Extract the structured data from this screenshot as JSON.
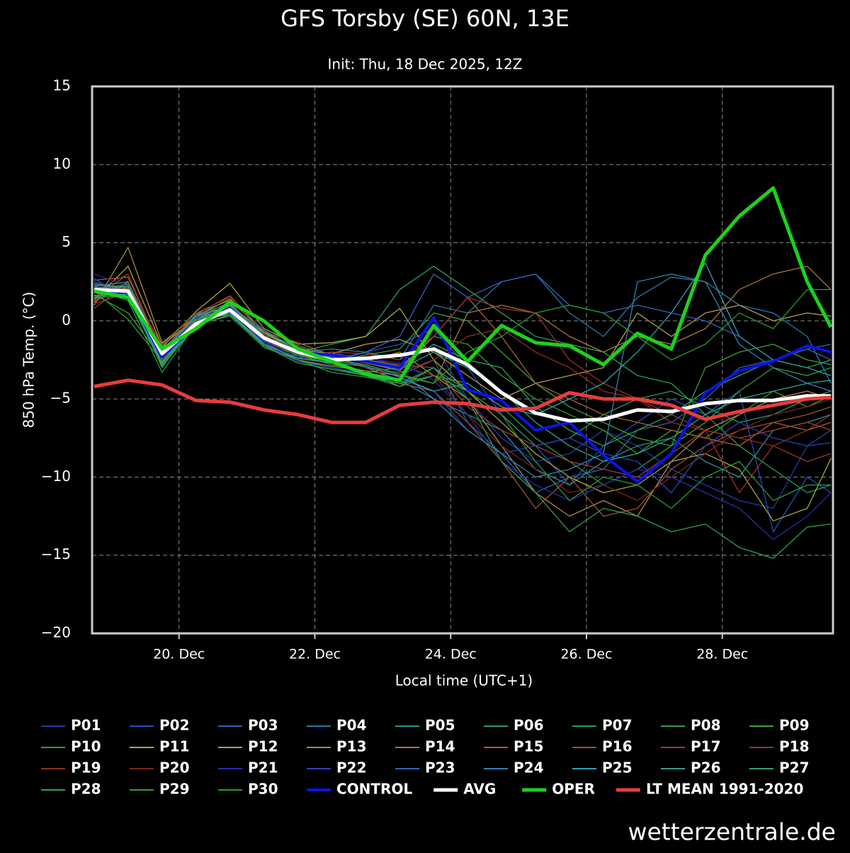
{
  "chart_data": {
    "type": "line",
    "title": "GFS Torsby (SE) 60N, 13E",
    "subtitle": "Init: Thu, 18 Dec 2025, 12Z",
    "xlabel": "Local time (UTC+1)",
    "ylabel": "850 hPa Temp. (°C)",
    "grid": true,
    "xlim": [
      18.72,
      29.63
    ],
    "ylim": [
      -20,
      15
    ],
    "xticks": [
      {
        "value": 20,
        "label": "20. Dec"
      },
      {
        "value": 22,
        "label": "22. Dec"
      },
      {
        "value": 24,
        "label": "24. Dec"
      },
      {
        "value": 26,
        "label": "26. Dec"
      },
      {
        "value": 28,
        "label": "28. Dec"
      }
    ],
    "yticks": [
      {
        "value": -20,
        "label": "−20"
      },
      {
        "value": -15,
        "label": "−15"
      },
      {
        "value": -10,
        "label": "−10"
      },
      {
        "value": -5,
        "label": "−5"
      },
      0,
      5,
      10,
      15
    ],
    "x": [
      18.75,
      19.25,
      19.75,
      20.25,
      20.75,
      21.25,
      21.75,
      22.25,
      22.75,
      23.25,
      23.75,
      24.25,
      24.75,
      25.25,
      25.75,
      26.25,
      26.75,
      27.25,
      27.75,
      28.25,
      28.75,
      29.25,
      29.6
    ],
    "series": [
      {
        "name": "P01",
        "color": "#1f3fa0",
        "linewidth": 1.3,
        "values": [
          2.5,
          2.0,
          -2.0,
          0.3,
          0.5,
          -1.0,
          -2.2,
          -2.0,
          -2.5,
          -3.0,
          -1.5,
          -5.0,
          -7.5,
          -9.0,
          -8.5,
          -7.0,
          -8.0,
          -9.5,
          -10.5,
          -11.5,
          -12.0,
          -8.0,
          -7.0
        ]
      },
      {
        "name": "P02",
        "color": "#2050c0",
        "linewidth": 1.3,
        "values": [
          1.8,
          2.2,
          -2.5,
          0.0,
          0.9,
          -1.5,
          -2.4,
          -2.6,
          -2.0,
          -1.5,
          -0.5,
          -3.0,
          -6.0,
          -8.0,
          -10.5,
          -8.0,
          -6.5,
          -5.0,
          -6.0,
          -4.5,
          -13.5,
          -10.0,
          -11.0
        ]
      },
      {
        "name": "P03",
        "color": "#2a64b0",
        "linewidth": 1.3,
        "values": [
          2.2,
          1.5,
          -1.8,
          -0.5,
          1.0,
          -0.8,
          -1.8,
          -2.4,
          -2.8,
          -3.5,
          -2.5,
          -6.5,
          -8.5,
          -11.0,
          -10.0,
          -9.5,
          -7.0,
          -6.5,
          -5.0,
          -3.0,
          -2.5,
          -1.8,
          -1.5
        ]
      },
      {
        "name": "P04",
        "color": "#2a78a8",
        "linewidth": 1.3,
        "values": [
          1.5,
          2.4,
          -2.2,
          0.2,
          0.6,
          -1.2,
          -2.0,
          -1.8,
          -2.0,
          -2.5,
          1.0,
          0.5,
          2.5,
          3.0,
          0.5,
          -1.0,
          1.5,
          2.8,
          2.5,
          1.0,
          0.5,
          -1.0,
          -4.0
        ]
      },
      {
        "name": "P05",
        "color": "#2a8ea0",
        "linewidth": 1.3,
        "values": [
          2.0,
          1.7,
          -2.6,
          -0.4,
          0.8,
          -1.1,
          -1.6,
          -2.2,
          -3.0,
          -3.8,
          -5.0,
          -6.0,
          -7.0,
          -9.5,
          -10.5,
          -9.0,
          -8.0,
          -7.5,
          -9.0,
          -10.0,
          -7.0,
          -6.5,
          -6.0
        ]
      },
      {
        "name": "P06",
        "color": "#2a9a70",
        "linewidth": 1.3,
        "values": [
          1.6,
          1.9,
          -3.0,
          0.1,
          0.4,
          -1.4,
          -2.5,
          -3.0,
          -3.5,
          -4.0,
          -3.0,
          -4.5,
          -6.0,
          -8.0,
          -7.5,
          -6.0,
          -5.0,
          -4.5,
          -5.5,
          -6.5,
          -6.0,
          -5.0,
          -4.5
        ]
      },
      {
        "name": "P07",
        "color": "#2aa058",
        "linewidth": 1.3,
        "values": [
          2.3,
          2.1,
          -1.5,
          0.5,
          1.3,
          -0.6,
          -2.0,
          -1.5,
          -1.0,
          2.0,
          3.5,
          2.0,
          0.5,
          -1.0,
          -1.5,
          -2.0,
          -3.5,
          -4.0,
          -6.0,
          -8.0,
          -9.5,
          -11.0,
          -10.5
        ]
      },
      {
        "name": "P08",
        "color": "#30a048",
        "linewidth": 1.3,
        "values": [
          1.9,
          1.6,
          -2.8,
          -0.2,
          0.7,
          -1.3,
          -2.2,
          -2.8,
          -3.2,
          -4.2,
          -3.5,
          -4.0,
          -5.5,
          -7.5,
          -9.0,
          -10.5,
          -9.5,
          -8.0,
          -6.5,
          -4.5,
          -3.0,
          -3.5,
          -3.0
        ]
      },
      {
        "name": "P09",
        "color": "#40a030",
        "linewidth": 1.3,
        "values": [
          2.1,
          2.3,
          -2.0,
          0.4,
          0.9,
          -0.9,
          -2.3,
          -2.5,
          -2.2,
          -1.8,
          0.5,
          0.0,
          -2.0,
          -4.0,
          -5.5,
          -6.5,
          -7.5,
          -8.0,
          -3.0,
          -2.0,
          -1.5,
          -2.5,
          -2.8
        ]
      },
      {
        "name": "P10",
        "color": "#3aa020",
        "linewidth": 1.3,
        "values": [
          1.7,
          0.5,
          -2.4,
          -0.1,
          1.1,
          -1.0,
          -2.1,
          -2.7,
          -3.3,
          -3.0,
          -1.0,
          -1.5,
          -3.5,
          -5.0,
          -6.0,
          -7.0,
          -8.5,
          -7.0,
          -7.5,
          -6.0,
          -4.5,
          -5.5,
          -4.8
        ]
      },
      {
        "name": "P11",
        "color": "#a8a840",
        "linewidth": 1.3,
        "values": [
          2.4,
          2.0,
          -1.7,
          0.6,
          2.4,
          -0.5,
          -1.5,
          -1.4,
          -1.0,
          0.8,
          -2.5,
          -4.5,
          -6.5,
          -8.5,
          -10.0,
          -11.0,
          -10.5,
          -9.0,
          -8.5,
          -9.5,
          -12.8,
          -12.0,
          -8.8
        ]
      },
      {
        "name": "P12",
        "color": "#b89a48",
        "linewidth": 1.3,
        "values": [
          1.3,
          3.5,
          -1.6,
          0.2,
          1.0,
          -0.7,
          -1.9,
          -2.1,
          -1.5,
          -1.2,
          -2.0,
          -3.5,
          -5.0,
          -4.0,
          -3.5,
          -3.0,
          0.5,
          -1.0,
          0.5,
          1.0,
          0.0,
          0.5,
          0.3
        ]
      },
      {
        "name": "P13",
        "color": "#b08840",
        "linewidth": 1.3,
        "values": [
          1.0,
          4.7,
          -1.4,
          0.3,
          1.4,
          -0.8,
          -1.7,
          -2.3,
          -2.6,
          -2.0,
          -3.5,
          -5.0,
          -8.0,
          -11.0,
          -12.5,
          -11.5,
          -12.5,
          -9.0,
          -7.0,
          -6.0,
          -5.0,
          -4.5,
          -5.0
        ]
      },
      {
        "name": "P14",
        "color": "#a87838",
        "linewidth": 1.3,
        "values": [
          1.2,
          2.5,
          -2.7,
          0.0,
          0.5,
          -1.6,
          -2.5,
          -2.9,
          -3.2,
          -3.5,
          -4.0,
          0.5,
          1.0,
          0.5,
          -1.0,
          -2.0,
          -1.0,
          -1.5,
          -0.5,
          2.0,
          3.0,
          3.5,
          2.0
        ]
      },
      {
        "name": "P15",
        "color": "#a86030",
        "linewidth": 1.3,
        "values": [
          2.6,
          2.8,
          -1.9,
          0.4,
          1.6,
          -0.7,
          -1.4,
          -2.2,
          -2.7,
          -3.2,
          -1.0,
          1.5,
          -1.0,
          -4.0,
          -5.0,
          -6.0,
          -6.5,
          -7.0,
          -7.5,
          -8.0,
          -6.5,
          -7.0,
          -6.5
        ]
      },
      {
        "name": "P16",
        "color": "#a05030",
        "linewidth": 1.3,
        "values": [
          1.4,
          3.0,
          -2.3,
          -0.3,
          0.4,
          -1.3,
          -2.2,
          -2.5,
          -2.9,
          -4.0,
          -4.5,
          -6.5,
          -9.0,
          -12.0,
          -10.0,
          -12.5,
          -12.0,
          -9.5,
          -8.0,
          -7.0,
          -6.5,
          -6.0,
          -5.5
        ]
      },
      {
        "name": "P17",
        "color": "#a04030",
        "linewidth": 1.3,
        "values": [
          2.0,
          2.1,
          -2.1,
          0.1,
          0.8,
          -1.0,
          -2.0,
          -2.4,
          -2.5,
          -2.8,
          -3.0,
          -5.5,
          -7.0,
          -8.0,
          -9.0,
          -9.5,
          -10.0,
          -8.5,
          -7.0,
          -7.5,
          -7.0,
          -6.5,
          -7.0
        ]
      },
      {
        "name": "P18",
        "color": "#a03030",
        "linewidth": 1.3,
        "values": [
          1.1,
          1.8,
          -2.5,
          0.2,
          1.2,
          -1.1,
          -2.4,
          -2.0,
          -2.1,
          -2.5,
          -1.0,
          1.5,
          0.8,
          0.5,
          -2.5,
          -4.0,
          -5.0,
          -6.0,
          -7.0,
          -11.0,
          -8.0,
          -9.0,
          -8.5
        ]
      },
      {
        "name": "P19",
        "color": "#903020",
        "linewidth": 1.3,
        "values": [
          0.8,
          2.4,
          -1.6,
          0.5,
          1.5,
          -0.9,
          -1.8,
          -2.3,
          -3.0,
          -3.3,
          -2.5,
          -1.0,
          -0.5,
          -2.0,
          -3.0,
          -4.5,
          -5.0,
          -6.5,
          -7.0,
          -7.5,
          -8.0,
          -7.0,
          -6.0
        ]
      },
      {
        "name": "P20",
        "color": "#802418",
        "linewidth": 1.3,
        "values": [
          1.9,
          3.0,
          -2.0,
          0.0,
          0.7,
          -1.2,
          -2.2,
          -2.6,
          -2.3,
          -2.9,
          -3.5,
          -6.0,
          -8.0,
          -9.5,
          -11.0,
          -10.5,
          -11.5,
          -10.0,
          -8.5,
          -7.0,
          -6.0,
          -5.5,
          -5.0
        ]
      },
      {
        "name": "P21",
        "color": "#2030a8",
        "linewidth": 1.3,
        "values": [
          3.0,
          2.2,
          -2.3,
          0.3,
          0.9,
          -1.4,
          -2.3,
          -2.1,
          -2.4,
          -2.7,
          -3.8,
          -6.0,
          -9.0,
          -10.5,
          -11.5,
          -10.5,
          -9.5,
          -10.0,
          -11.0,
          -12.0,
          -14.0,
          -12.5,
          -11.0
        ]
      },
      {
        "name": "P22",
        "color": "#2844b8",
        "linewidth": 1.3,
        "values": [
          2.7,
          1.4,
          -2.6,
          -0.2,
          0.6,
          -1.5,
          -2.6,
          -3.0,
          -3.4,
          -3.7,
          -4.5,
          -7.0,
          -8.5,
          -8.0,
          -7.5,
          -8.5,
          -9.0,
          -11.0,
          -8.0,
          -6.5,
          -7.5,
          -8.0,
          -7.8
        ]
      },
      {
        "name": "P23",
        "color": "#3064c0",
        "linewidth": 1.3,
        "values": [
          2.4,
          1.9,
          -1.9,
          0.2,
          0.8,
          -0.6,
          -1.8,
          -2.5,
          -2.0,
          -1.0,
          3.0,
          1.5,
          2.5,
          3.0,
          1.0,
          0.5,
          1.0,
          0.5,
          0.0,
          -1.0,
          -2.5,
          -1.8,
          -2.5
        ]
      },
      {
        "name": "P24",
        "color": "#3084b0",
        "linewidth": 1.3,
        "values": [
          2.2,
          2.5,
          -2.2,
          0.4,
          1.1,
          -1.0,
          -2.0,
          -2.2,
          -2.6,
          -3.2,
          -5.0,
          -7.0,
          -8.5,
          -10.0,
          -9.5,
          -8.5,
          2.5,
          3.0,
          2.5,
          -1.5,
          -3.0,
          -4.0,
          -4.5
        ]
      },
      {
        "name": "P25",
        "color": "#30a0b0",
        "linewidth": 1.3,
        "values": [
          1.6,
          1.7,
          -2.7,
          -0.1,
          0.5,
          -1.5,
          -2.4,
          -2.7,
          -2.9,
          -3.6,
          -4.5,
          -4.0,
          -5.5,
          -6.0,
          -5.0,
          -4.0,
          -2.0,
          0.5,
          3.7,
          -1.0,
          -2.5,
          -3.0,
          -3.5
        ]
      },
      {
        "name": "P26",
        "color": "#30a090",
        "linewidth": 1.3,
        "values": [
          1.8,
          2.0,
          -2.4,
          0.1,
          0.8,
          -1.1,
          -2.1,
          -2.3,
          -2.6,
          -3.1,
          -2.0,
          -3.0,
          -4.5,
          -6.5,
          -8.0,
          -9.0,
          -8.5,
          -7.5,
          -6.0,
          -5.0,
          -4.5,
          -4.0,
          -3.8
        ]
      },
      {
        "name": "P27",
        "color": "#30a070",
        "linewidth": 1.3,
        "values": [
          2.1,
          2.2,
          -2.1,
          0.3,
          0.9,
          -0.8,
          -1.9,
          -2.2,
          -2.5,
          -2.9,
          -1.5,
          -2.5,
          -3.0,
          -5.5,
          -7.0,
          -8.0,
          -7.0,
          -6.0,
          -4.5,
          -3.5,
          -2.5,
          -3.0,
          -2.5
        ]
      },
      {
        "name": "P28",
        "color": "#30a050",
        "linewidth": 1.3,
        "values": [
          1.5,
          1.6,
          -2.9,
          -0.3,
          0.4,
          -1.6,
          -2.7,
          -3.1,
          -3.5,
          -4.2,
          -3.0,
          -5.0,
          -9.0,
          -11.0,
          -13.5,
          -12.0,
          -12.5,
          -13.5,
          -13.0,
          -14.5,
          -15.2,
          -13.2,
          -13.0
        ]
      },
      {
        "name": "P29",
        "color": "#2c9a3c",
        "linewidth": 1.3,
        "values": [
          2.0,
          1.3,
          -3.3,
          -0.2,
          0.3,
          -1.7,
          -2.5,
          -3.3,
          -3.6,
          -4.0,
          -3.5,
          -4.5,
          -6.0,
          -9.0,
          -11.5,
          -10.0,
          -10.5,
          -12.0,
          -10.0,
          -9.0,
          -11.5,
          -10.5,
          -10.5
        ]
      },
      {
        "name": "P30",
        "color": "#289a28",
        "linewidth": 1.3,
        "values": [
          1.9,
          0.1,
          -2.6,
          0.0,
          0.7,
          -1.2,
          -2.2,
          -2.6,
          -2.8,
          -3.4,
          -4.0,
          -2.0,
          -1.0,
          0.5,
          1.0,
          0.5,
          -1.0,
          -2.5,
          -1.5,
          0.5,
          -0.5,
          2.0,
          2.0
        ]
      },
      {
        "name": "CONTROL",
        "color": "#0a14e6",
        "linewidth": 4,
        "values": [
          2.0,
          1.8,
          -2.3,
          -0.2,
          0.8,
          -1.2,
          -2.0,
          -2.2,
          -2.6,
          -3.0,
          0.2,
          -4.4,
          -5.1,
          -7.0,
          -6.5,
          -8.6,
          -10.3,
          -8.5,
          -4.6,
          -3.2,
          -2.6,
          -1.6,
          -2.0
        ]
      },
      {
        "name": "AVG",
        "color": "#ffffff",
        "linewidth": 5,
        "values": [
          2.0,
          1.9,
          -2.1,
          -0.2,
          0.7,
          -1.1,
          -2.0,
          -2.5,
          -2.4,
          -2.2,
          -1.8,
          -2.8,
          -4.6,
          -5.9,
          -6.4,
          -6.3,
          -5.7,
          -5.8,
          -5.3,
          -5.1,
          -5.1,
          -4.8,
          -4.8
        ]
      },
      {
        "name": "OPER",
        "color": "#1ad21a",
        "linewidth": 5,
        "values": [
          1.9,
          1.5,
          -1.8,
          -0.5,
          1.2,
          0.0,
          -1.8,
          -2.6,
          -3.4,
          -3.8,
          -0.3,
          -2.6,
          -0.3,
          -1.4,
          -1.6,
          -2.8,
          -0.8,
          -1.8,
          4.2,
          6.7,
          8.5,
          2.5,
          -0.4
        ]
      },
      {
        "name": "LT MEAN 1991-2020",
        "color": "#e83c3c",
        "linewidth": 5,
        "values": [
          -4.2,
          -3.8,
          -4.1,
          -5.1,
          -5.2,
          -5.7,
          -6.0,
          -6.5,
          -6.5,
          -5.4,
          -5.2,
          -5.3,
          -5.7,
          -5.6,
          -4.6,
          -5.0,
          -5.0,
          -5.4,
          -6.3,
          -5.8,
          -5.4,
          -5.0,
          -4.9
        ]
      }
    ]
  },
  "watermark": "wetterzentrale.de"
}
